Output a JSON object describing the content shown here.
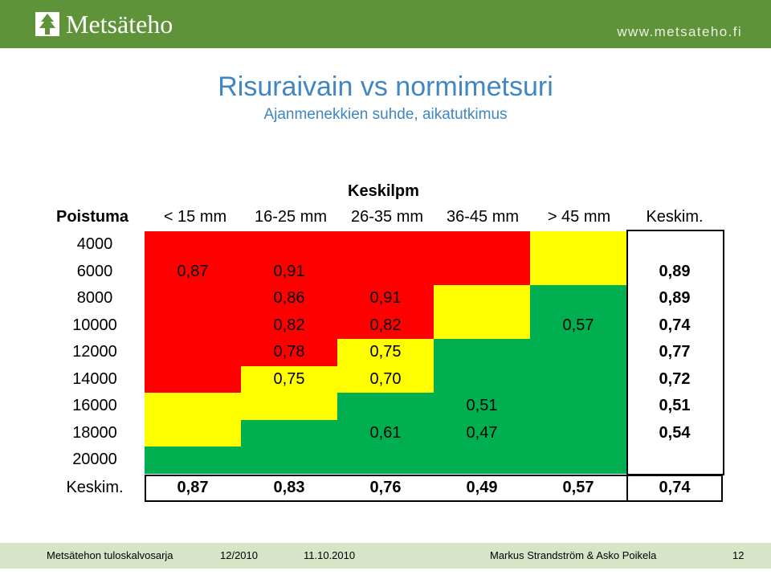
{
  "header": {
    "logo_text": "Metsäteho",
    "url": "www.metsateho.fi"
  },
  "title": "Risuraivain vs  normimetsuri",
  "subtitle": "Ajanmenekkien suhde, aikatutkimus",
  "table": {
    "row_axis_label": "Poistuma",
    "col_axis_label": "Keskilpm",
    "columns": [
      "< 15 mm",
      "16-25 mm",
      "26-35 mm",
      "36-45 mm",
      "> 45 mm"
    ],
    "avg_col_label": "Keskim.",
    "rows": [
      {
        "label": "4000",
        "values": [
          "",
          "",
          "",
          "",
          ""
        ],
        "avg": "",
        "colors": [
          "red",
          "red",
          "red",
          "red",
          "yellow"
        ]
      },
      {
        "label": "6000",
        "values": [
          "0,87",
          "0,91",
          "",
          "",
          ""
        ],
        "avg": "0,89",
        "colors": [
          "red",
          "red",
          "red",
          "red",
          "yellow"
        ]
      },
      {
        "label": "8000",
        "values": [
          "",
          "0,86",
          "0,91",
          "",
          ""
        ],
        "avg": "0,89",
        "colors": [
          "red",
          "red",
          "red",
          "yellow",
          "green"
        ]
      },
      {
        "label": "10000",
        "values": [
          "",
          "0,82",
          "0,82",
          "",
          "0,57"
        ],
        "avg": "0,74",
        "colors": [
          "red",
          "red",
          "red",
          "yellow",
          "green"
        ]
      },
      {
        "label": "12000",
        "values": [
          "",
          "0,78",
          "0,75",
          "",
          ""
        ],
        "avg": "0,77",
        "colors": [
          "red",
          "red",
          "yellow",
          "green",
          "green"
        ]
      },
      {
        "label": "14000",
        "values": [
          "",
          "0,75",
          "0,70",
          "",
          ""
        ],
        "avg": "0,72",
        "colors": [
          "red",
          "yellow",
          "yellow",
          "green",
          "green"
        ]
      },
      {
        "label": "16000",
        "values": [
          "",
          "",
          "",
          "0,51",
          ""
        ],
        "avg": "0,51",
        "colors": [
          "yellow",
          "yellow",
          "green",
          "green",
          "green"
        ]
      },
      {
        "label": "18000",
        "values": [
          "",
          "",
          "0,61",
          "0,47",
          ""
        ],
        "avg": "0,54",
        "colors": [
          "yellow",
          "green",
          "green",
          "green",
          "green"
        ]
      },
      {
        "label": "20000",
        "values": [
          "",
          "",
          "",
          "",
          ""
        ],
        "avg": "",
        "colors": [
          "green",
          "green",
          "green",
          "green",
          "green"
        ]
      }
    ],
    "bottom_row": {
      "label": "Keskim.",
      "values": [
        "0,87",
        "0,83",
        "0,76",
        "0,49",
        "0,57"
      ],
      "avg": "0,74"
    },
    "color_map": {
      "red": "#ff0000",
      "yellow": "#ffff00",
      "green": "#00b050"
    }
  },
  "footer": {
    "org": "Metsätehon tuloskalvosarja",
    "series": "12/2010",
    "date": "11.10.2010",
    "authors": "Markus Strandström & Asko Poikela",
    "page": "12"
  }
}
